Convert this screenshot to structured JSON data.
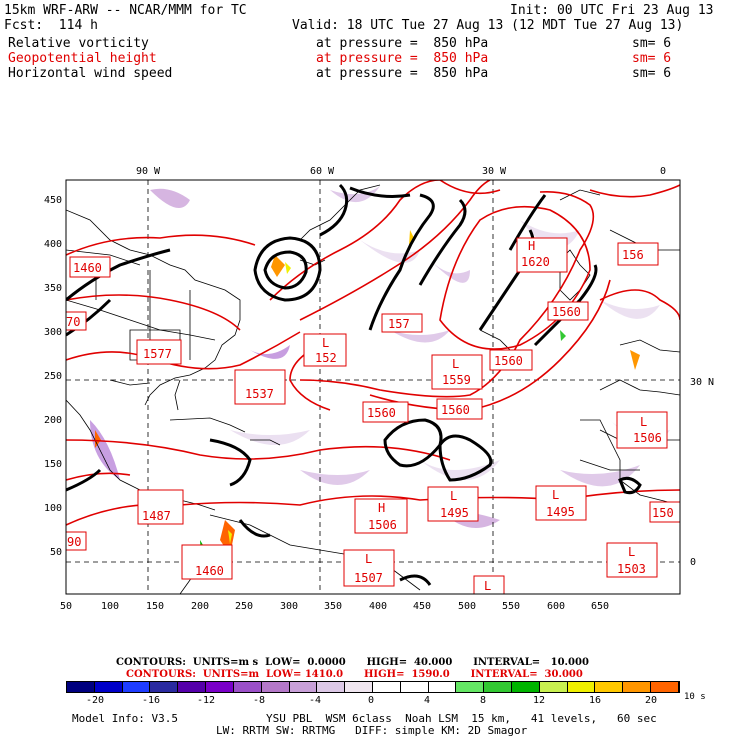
{
  "header": {
    "model_title": "15km WRF-ARW -- NCAR/MMM for TC",
    "init": "Init: 00 UTC Fri 23 Aug 13",
    "fcst": "Fcst:  114 h",
    "valid": "Valid: 18 UTC Tue 27 Aug 13 (12 MDT Tue 27 Aug 13)",
    "fields": [
      {
        "name": "Relative vorticity",
        "level": "at pressure =  850 hPa",
        "sm": "sm= 6",
        "color": "#000000"
      },
      {
        "name": "Geopotential height",
        "level": "at pressure =  850 hPa",
        "sm": "sm= 6",
        "color": "#e00000"
      },
      {
        "name": "Horizontal wind speed",
        "level": "at pressure =  850 hPa",
        "sm": "sm= 6",
        "color": "#000000"
      }
    ]
  },
  "map": {
    "top_labels": [
      "90 W",
      "60 W",
      "30 W",
      "0"
    ],
    "right_labels": [
      "30 N",
      "0"
    ],
    "x_ticks": [
      "50",
      "100",
      "150",
      "200",
      "250",
      "300",
      "350",
      "400",
      "450",
      "500",
      "550",
      "600",
      "650"
    ],
    "y_ticks": [
      "50",
      "100",
      "150",
      "200",
      "250",
      "300",
      "350",
      "400",
      "450"
    ],
    "height_labels": [
      {
        "type": "",
        "value": "1460"
      },
      {
        "type": "",
        "value": "1577"
      },
      {
        "type": "",
        "value": "1537"
      },
      {
        "type": "L",
        "value": "152"
      },
      {
        "type": "",
        "value": "157"
      },
      {
        "type": "H",
        "value": "1620"
      },
      {
        "type": "",
        "value": "156"
      },
      {
        "type": "",
        "value": "1560"
      },
      {
        "type": "L",
        "value": "1559"
      },
      {
        "type": "",
        "value": "1560"
      },
      {
        "type": "",
        "value": "1560"
      },
      {
        "type": "",
        "value": "1560"
      },
      {
        "type": "L",
        "value": "1506"
      },
      {
        "type": "",
        "value": "1487"
      },
      {
        "type": "H",
        "value": "1506"
      },
      {
        "type": "L",
        "value": "1495"
      },
      {
        "type": "L",
        "value": "1495"
      },
      {
        "type": "",
        "value": "150"
      },
      {
        "type": "",
        "value": "1460"
      },
      {
        "type": "L",
        "value": "1507"
      },
      {
        "type": "L",
        "value": "1503"
      },
      {
        "type": "",
        "value": "90"
      },
      {
        "type": "",
        "value": "70"
      }
    ]
  },
  "footer": {
    "contours_black": "CONTOURS:  UNITS=m s  LOW=  0.0000      HIGH=  40.000      INTERVAL=   10.000",
    "contours_red": "CONTOURS:  UNITS=m  LOW= 1410.0      HIGH=  1590.0      INTERVAL=  30.000",
    "colorbar_labels": [
      "-20",
      "-16",
      "-12",
      "-8",
      "-4",
      "0",
      "4",
      "8",
      "12",
      "16",
      "20"
    ],
    "colorbar_unit": "10 s",
    "colorbar_colors": [
      "#00007f",
      "#0000c8",
      "#1e3cff",
      "#2a2aa0",
      "#5500aa",
      "#7a00c8",
      "#9b50c8",
      "#b478c8",
      "#c8a0d8",
      "#dcc8e6",
      "#f0e6f0",
      "#ffffff",
      "#ffffff",
      "#ffffff",
      "#64e664",
      "#32c832",
      "#00b400",
      "#c8f050",
      "#f0f000",
      "#ffc800",
      "#ff9600",
      "#ff6400"
    ],
    "model_info": "Model Info: V3.5",
    "physics1": "YSU PBL  WSM 6class  Noah LSM  15 km,   41 levels,   60 sec",
    "physics2": "LW: RRTM SW: RRTMG   DIFF: simple KM: 2D Smagor"
  }
}
